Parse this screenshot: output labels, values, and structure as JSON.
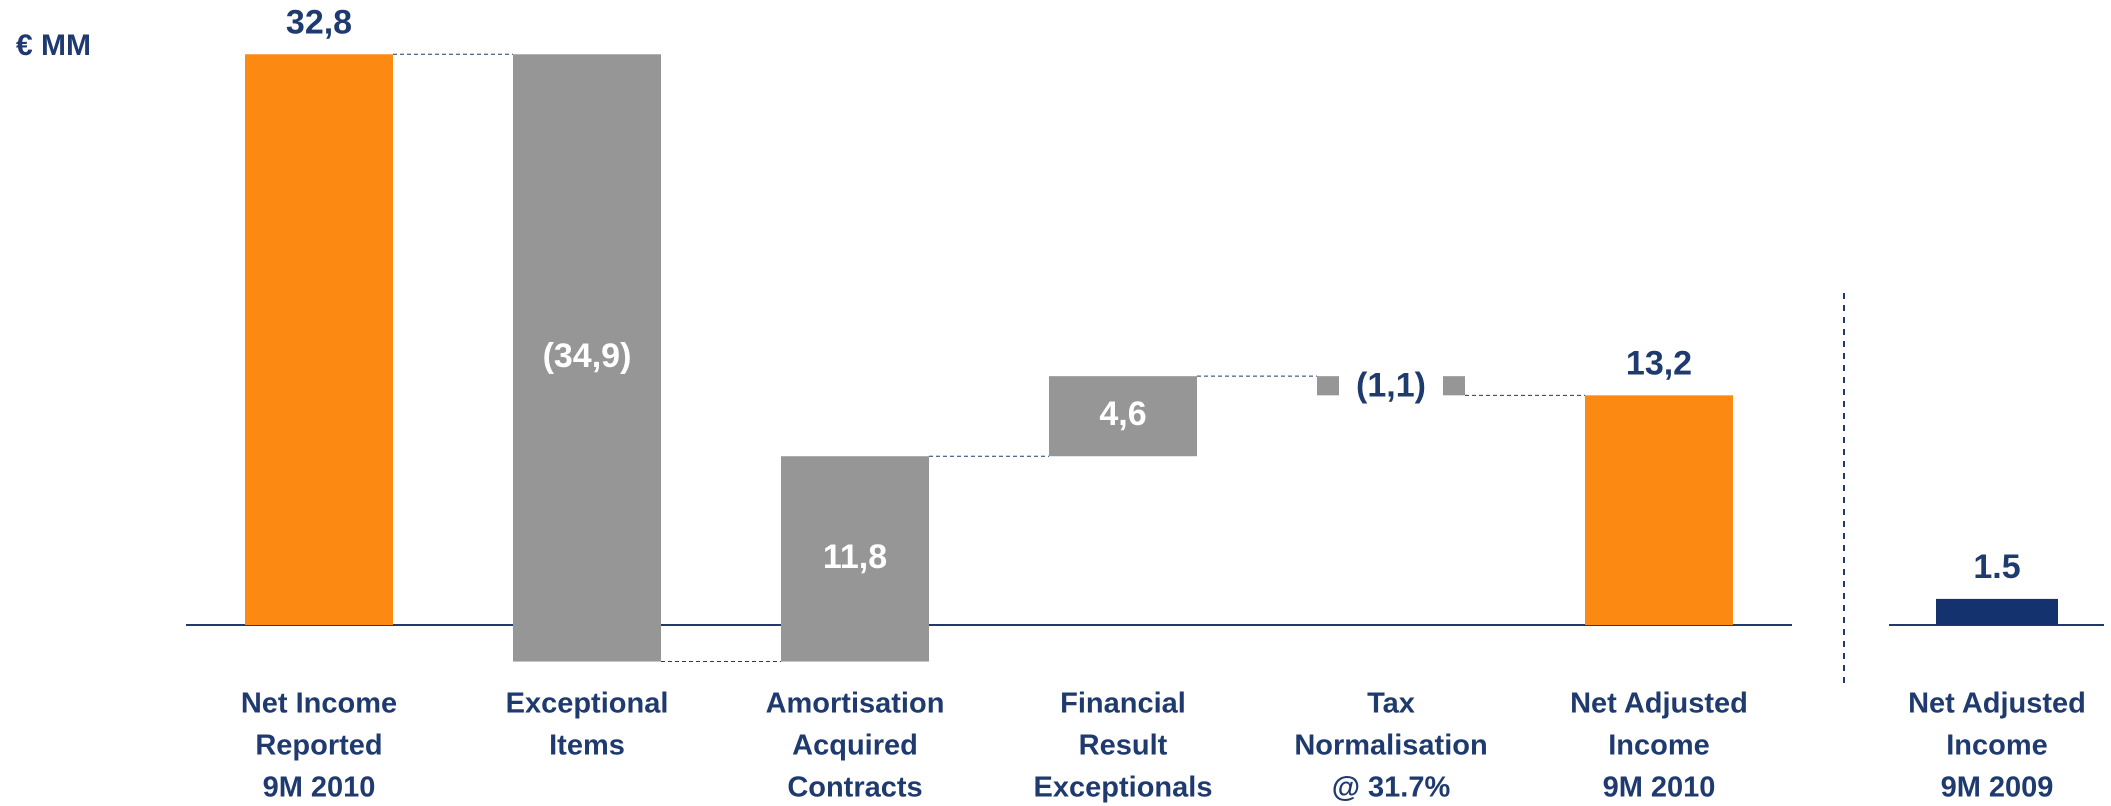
{
  "chart_data": {
    "type": "waterfall",
    "unit_label": "€ MM",
    "categories": [
      [
        "Net Income",
        "Reported",
        "9M 2010"
      ],
      [
        "Exceptional",
        "Items"
      ],
      [
        "Amortisation",
        "Acquired",
        "Contracts"
      ],
      [
        "Financial",
        "Result",
        "Exceptionals"
      ],
      [
        "Tax",
        "Normalisation",
        "@ 31.7%"
      ],
      [
        "Net Adjusted",
        "Income",
        "9M 2010"
      ],
      [
        "Net Adjusted",
        "Income",
        "9M 2009"
      ]
    ],
    "values": [
      32.8,
      -34.9,
      11.8,
      4.6,
      -1.1,
      13.2,
      1.5
    ],
    "value_labels": [
      "32,8",
      "(34,9)",
      "11,8",
      "4,6",
      "(1,1)",
      "13,2",
      "1.5"
    ],
    "measures": [
      "total",
      "relative",
      "relative",
      "relative",
      "relative",
      "total",
      "total"
    ],
    "colors": [
      "#fc8a12",
      "#969696",
      "#969696",
      "#969696",
      "#969696",
      "#fc8a12",
      "#14336e"
    ],
    "ylim": [
      -10,
      35
    ]
  }
}
